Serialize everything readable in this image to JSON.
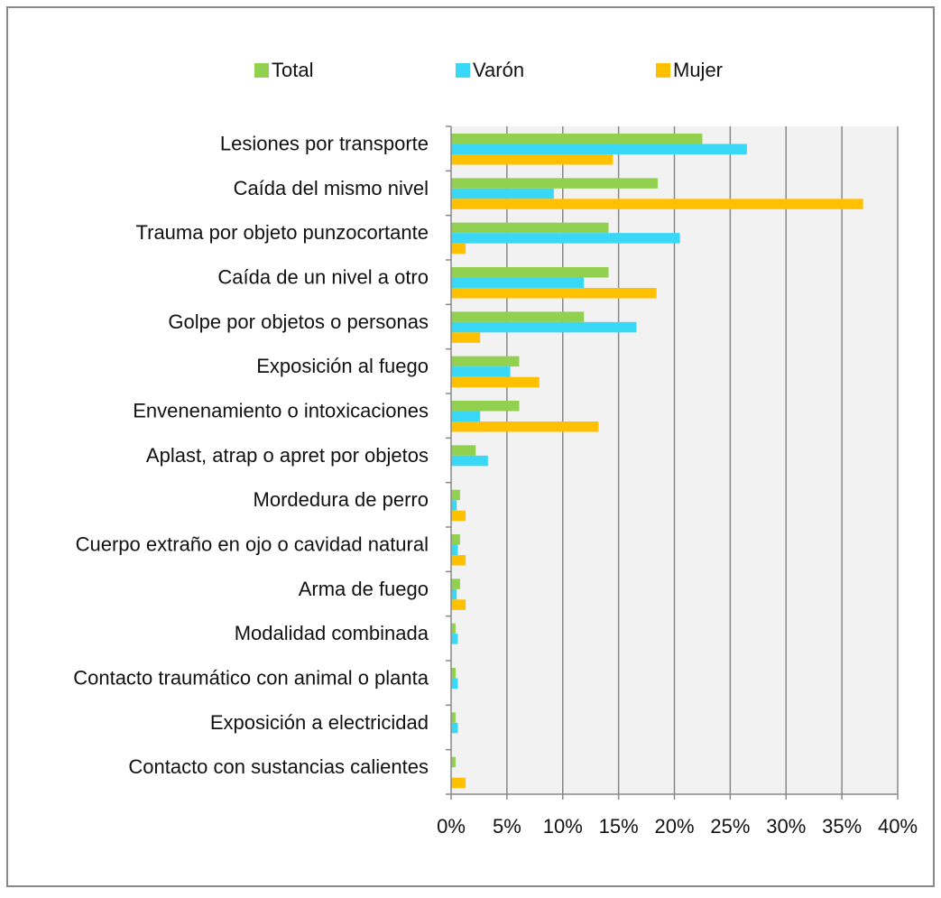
{
  "chart_data": {
    "type": "bar",
    "orientation": "horizontal",
    "categories": [
      "Lesiones por transporte",
      "Caída del mismo nivel",
      "Trauma por objeto punzocortante",
      "Caída de un nivel a otro",
      "Golpe por objetos o personas",
      "Exposición al fuego",
      "Envenenamiento o intoxicaciones",
      "Aplast, atrap o apret por objetos",
      "Mordedura de perro",
      "Cuerpo extraño en ojo o cavidad natural",
      "Arma de fuego",
      "Modalidad combinada",
      "Contacto traumático con animal o planta",
      "Exposición a electricidad",
      "Contacto con sustancias calientes"
    ],
    "series": [
      {
        "name": "Total",
        "color": "#92d050",
        "values": [
          22.5,
          18.5,
          14.1,
          14.1,
          11.9,
          6.1,
          6.1,
          2.2,
          0.8,
          0.8,
          0.8,
          0.4,
          0.4,
          0.4,
          0.4
        ]
      },
      {
        "name": "Varón",
        "color": "#3ad8f7",
        "values": [
          26.5,
          9.2,
          20.5,
          11.9,
          16.6,
          5.3,
          2.6,
          3.3,
          0.5,
          0.6,
          0.5,
          0.6,
          0.6,
          0.6,
          0
        ]
      },
      {
        "name": "Mujer",
        "color": "#ffc000",
        "values": [
          14.5,
          36.9,
          1.3,
          18.4,
          2.6,
          7.9,
          13.2,
          0,
          1.3,
          1.3,
          1.3,
          0,
          0,
          0,
          1.3
        ]
      }
    ],
    "xlim": [
      0,
      40
    ],
    "xticks": [
      {
        "value": 0,
        "label": "0%"
      },
      {
        "value": 5,
        "label": "5%"
      },
      {
        "value": 10,
        "label": "10%"
      },
      {
        "value": 15,
        "label": "15%"
      },
      {
        "value": 20,
        "label": "20%"
      },
      {
        "value": 25,
        "label": "25%"
      },
      {
        "value": 30,
        "label": "30%"
      },
      {
        "value": 35,
        "label": "35%"
      },
      {
        "value": 40,
        "label": "40%"
      }
    ],
    "grid": true,
    "legend": "top"
  }
}
